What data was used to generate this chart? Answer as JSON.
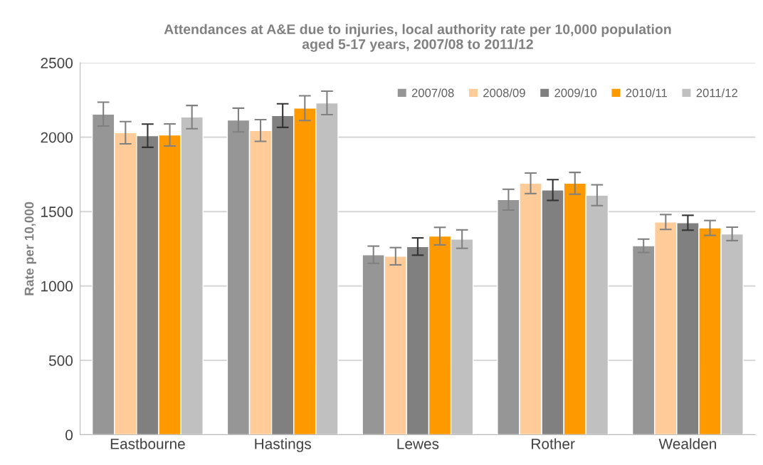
{
  "chart_data": {
    "type": "bar",
    "title": "Attendances at A&E due to injuries, local authority rate per 10,000 population\naged 5-17 years, 2007/08 to 2011/12",
    "ylabel": "Rate per 10,000",
    "categories": [
      "Eastbourne",
      "Hastings",
      "Lewes",
      "Rother",
      "Wealden"
    ],
    "series": [
      {
        "name": "2007/08",
        "color": "#969696",
        "values": [
          2155,
          2115,
          1210,
          1580,
          1270
        ],
        "errors": [
          80,
          80,
          58,
          70,
          45
        ]
      },
      {
        "name": "2008/09",
        "color": "#ffcc99",
        "values": [
          2030,
          2045,
          1200,
          1690,
          1430
        ],
        "errors": [
          75,
          73,
          58,
          69,
          50
        ]
      },
      {
        "name": "2009/10",
        "color": "#808080",
        "values": [
          2010,
          2145,
          1265,
          1645,
          1425
        ],
        "errors": [
          78,
          79,
          58,
          70,
          50
        ]
      },
      {
        "name": "2010/11",
        "color": "#ff9900",
        "values": [
          2015,
          2195,
          1335,
          1690,
          1390
        ],
        "errors": [
          74,
          83,
          59,
          73,
          50
        ]
      },
      {
        "name": "2011/12",
        "color": "#c0c0c0",
        "values": [
          2135,
          2230,
          1315,
          1610,
          1350
        ],
        "errors": [
          78,
          79,
          62,
          70,
          45
        ]
      }
    ],
    "ylim": [
      0,
      2500
    ],
    "yticks": [
      0,
      500,
      1000,
      1500,
      2000,
      2500
    ],
    "grid": "y",
    "legend": "top right"
  }
}
